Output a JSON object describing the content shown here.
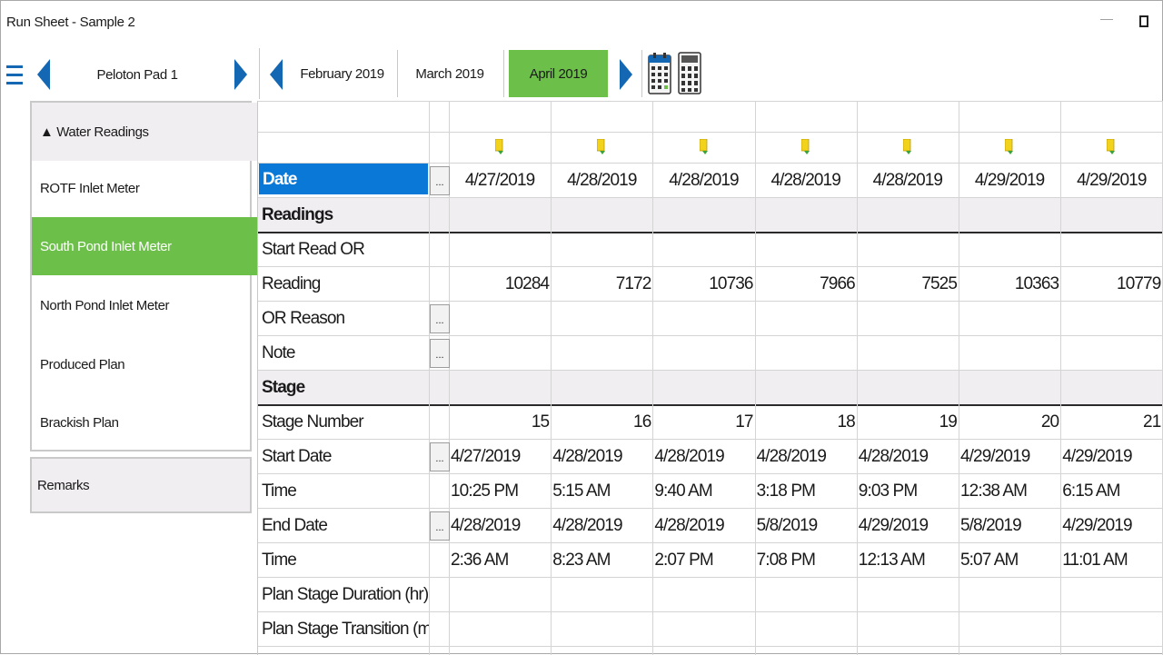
{
  "window": {
    "title": "Run Sheet - Sample 2",
    "minimize_label": "—"
  },
  "toolbar": {
    "location": "Peloton Pad 1",
    "months": [
      "February 2019",
      "March 2019",
      "April 2019"
    ],
    "active_month": "April 2019"
  },
  "sidebar": {
    "group_label": "▲ Water Readings",
    "items": [
      "ROTF Inlet Meter",
      "South Pond Inlet Meter",
      "North Pond Inlet Meter",
      "Produced Plan",
      "Brackish Plan"
    ],
    "selected": "South Pond Inlet Meter",
    "remarks_label": "Remarks"
  },
  "grid": {
    "ellipsis": "...",
    "date_header": "Date",
    "dates": [
      "4/27/2019",
      "4/28/2019",
      "4/28/2019",
      "4/28/2019",
      "4/28/2019",
      "4/29/2019",
      "4/29/2019"
    ],
    "sections": {
      "readings": "Readings",
      "stage": "Stage"
    },
    "row_labels": {
      "start_read_or": "Start Read OR",
      "reading": "Reading",
      "or_reason": "OR Reason",
      "note": "Note",
      "stage_number": "Stage Number",
      "start_date": "Start Date",
      "start_time": "Time",
      "end_date": "End Date",
      "end_time": "Time",
      "plan_duration": "Plan Stage Duration (hr)",
      "plan_transition": "Plan Stage Transition (min)"
    },
    "readings": [
      "10284",
      "7172",
      "10736",
      "7966",
      "7525",
      "10363",
      "10779"
    ],
    "stage_numbers": [
      "15",
      "16",
      "17",
      "18",
      "19",
      "20",
      "21"
    ],
    "start_dates": [
      "4/27/2019",
      "4/28/2019",
      "4/28/2019",
      "4/28/2019",
      "4/28/2019",
      "4/29/2019",
      "4/29/2019"
    ],
    "start_times": [
      "10:25 PM",
      "5:15 AM",
      "9:40 AM",
      "3:18 PM",
      "9:03 PM",
      "12:38 AM",
      "6:15 AM"
    ],
    "end_dates": [
      "4/28/2019",
      "4/28/2019",
      "4/28/2019",
      "5/8/2019",
      "4/29/2019",
      "5/8/2019",
      "4/29/2019"
    ],
    "end_times": [
      "2:36 AM",
      "8:23 AM",
      "2:07 PM",
      "7:08 PM",
      "12:13 AM",
      "5:07 AM",
      "11:01 AM"
    ]
  },
  "colors": {
    "accent_green": "#6cc04a",
    "nav_blue": "#1467b3",
    "date_header_bg": "#0a78d7",
    "section_bg": "#f1eef1"
  },
  "icons": {
    "menu": "hamburger-icon",
    "prev": "arrow-left-icon",
    "next": "arrow-right-icon",
    "calendar": "calendar-icon",
    "calculator": "calculator-icon",
    "flag": "flag-icon"
  }
}
